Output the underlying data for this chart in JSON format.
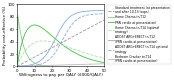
{
  "xlabel": "Willingness to pay per QALY (£000/QALY)",
  "ylabel": "Probability cost-effective (%)",
  "xlim": [
    0,
    50
  ],
  "ylim": [
    0,
    100
  ],
  "xticks": [
    0,
    10,
    20,
    30,
    40,
    50
  ],
  "yticks": [
    0,
    20,
    40,
    60,
    80,
    100
  ],
  "lines": [
    {
      "color": "#999999",
      "linestyle": "--",
      "label": "Standard treatment (at presentation\nand after 10-13 loops)"
    },
    {
      "color": "#88cc88",
      "linestyle": "-",
      "label": "Home Chemo-tn-T12"
    },
    {
      "color": "#44bb44",
      "linestyle": "-",
      "label": "PRN cardio at presentation)"
    },
    {
      "color": "#aaddaa",
      "linestyle": "--",
      "label": "Home Chemo-tn-T14 (optimal\nstrategy)"
    },
    {
      "color": "#88aadd",
      "linestyle": "-",
      "label": "ADOST ARG+ERECT tn-T12\n(PRN cardio at presentation)"
    },
    {
      "color": "#88aadd",
      "linestyle": "--",
      "label": "ADOST ARG+ERECT tn-T14 optional\nstrategy"
    },
    {
      "color": "#bbbbbb",
      "linestyle": "-",
      "label": "Bedroom Cracker tn-T14\n(PRN cardio at presentation)"
    }
  ],
  "background_color": "#ffffff"
}
